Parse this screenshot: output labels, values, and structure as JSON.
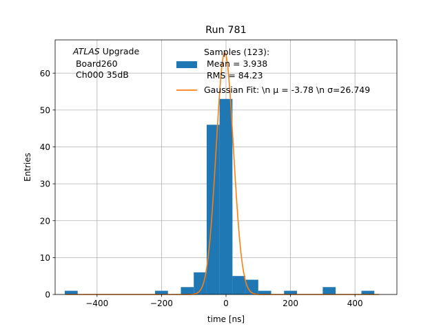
{
  "chart_data": {
    "type": "bar",
    "title": "Run 781",
    "xlabel": "time [ns]",
    "ylabel": "Entries",
    "xlim": [
      -530,
      530
    ],
    "ylim": [
      0,
      69
    ],
    "xticks": [
      -400,
      -200,
      0,
      200,
      400
    ],
    "yticks": [
      0,
      10,
      20,
      30,
      40,
      50,
      60
    ],
    "grid": true,
    "legend_position": "top-center",
    "annotation": {
      "experiment": "ATLAS",
      "suffix": " Upgrade",
      "line2": " Board260",
      "line3": " Ch000 35dB"
    },
    "histogram": {
      "name": "Samples (123):",
      "legend_lines": [
        "Samples (123):",
        " Mean = 3.938",
        " RMS = 84.23"
      ],
      "color": "#1f77b4",
      "bin_width": 40,
      "bins": [
        {
          "x": -480,
          "count": 1
        },
        {
          "x": -200,
          "count": 1
        },
        {
          "x": -120,
          "count": 2
        },
        {
          "x": -80,
          "count": 6
        },
        {
          "x": -40,
          "count": 46
        },
        {
          "x": 0,
          "count": 53
        },
        {
          "x": 40,
          "count": 5
        },
        {
          "x": 80,
          "count": 4
        },
        {
          "x": 120,
          "count": 1
        },
        {
          "x": 200,
          "count": 1
        },
        {
          "x": 320,
          "count": 2
        },
        {
          "x": 440,
          "count": 1
        }
      ]
    },
    "gaussian_fit": {
      "label": "Gaussian Fit: \\n μ = -3.78 \\n σ=26.749",
      "mu": -3.78,
      "sigma": 26.749,
      "amplitude": 65.5,
      "color": "#ff7f0e"
    }
  }
}
